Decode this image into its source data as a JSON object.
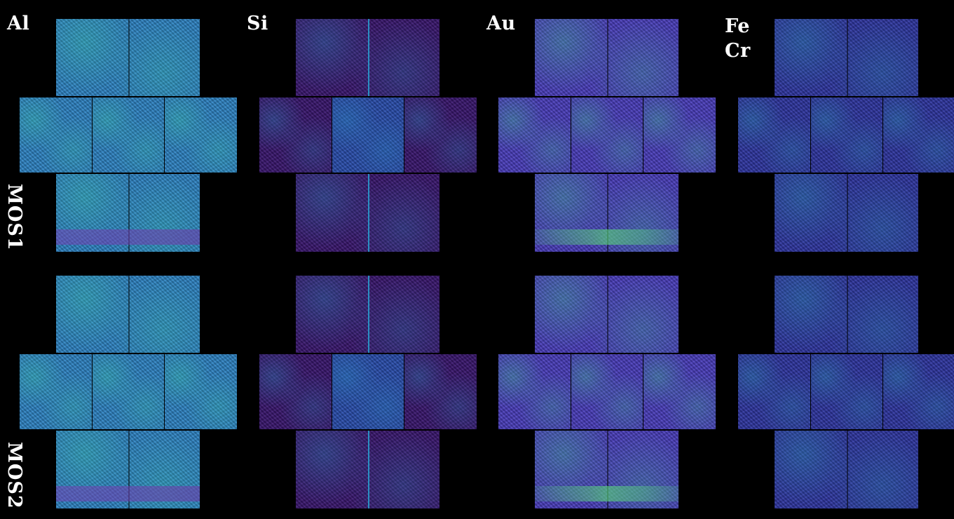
{
  "elements": [
    "Al",
    "Si",
    "Au",
    "Fe\nCr"
  ],
  "element_labels": {
    "al": "Al",
    "si": "Si",
    "au": "Au",
    "fe": "Fe",
    "cr": "Cr"
  },
  "rows": [
    "MOS1",
    "MOS2"
  ],
  "colors": {
    "background": "#000000",
    "al_base": "#2f86c8",
    "al_bright": "#3bc6a0",
    "si_base": "#3a1670",
    "si_bright": "#2a8fc2",
    "au_base": "#4b3fc0",
    "au_bright": "#3fc88f",
    "fe_base": "#2f36a4",
    "fe_bright": "#2a9ab0",
    "text": "#ffffff"
  }
}
